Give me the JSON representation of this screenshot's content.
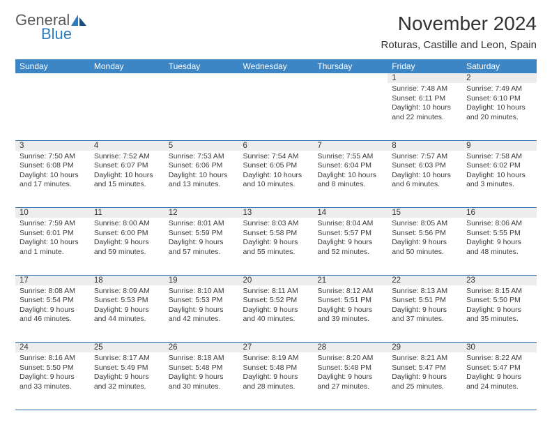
{
  "logo": {
    "general": "General",
    "blue": "Blue"
  },
  "title": "November 2024",
  "location": "Roturas, Castille and Leon, Spain",
  "colors": {
    "header_bg": "#3d86c6",
    "header_text": "#ffffff",
    "rule": "#2f6ca8",
    "daynum_bg": "#ededed",
    "text": "#3a3a3a",
    "brand_blue": "#2b7bbf"
  },
  "weekdays": [
    "Sunday",
    "Monday",
    "Tuesday",
    "Wednesday",
    "Thursday",
    "Friday",
    "Saturday"
  ],
  "weeks": [
    [
      null,
      null,
      null,
      null,
      null,
      {
        "n": "1",
        "sr": "Sunrise: 7:48 AM",
        "ss": "Sunset: 6:11 PM",
        "d1": "Daylight: 10 hours",
        "d2": "and 22 minutes."
      },
      {
        "n": "2",
        "sr": "Sunrise: 7:49 AM",
        "ss": "Sunset: 6:10 PM",
        "d1": "Daylight: 10 hours",
        "d2": "and 20 minutes."
      }
    ],
    [
      {
        "n": "3",
        "sr": "Sunrise: 7:50 AM",
        "ss": "Sunset: 6:08 PM",
        "d1": "Daylight: 10 hours",
        "d2": "and 17 minutes."
      },
      {
        "n": "4",
        "sr": "Sunrise: 7:52 AM",
        "ss": "Sunset: 6:07 PM",
        "d1": "Daylight: 10 hours",
        "d2": "and 15 minutes."
      },
      {
        "n": "5",
        "sr": "Sunrise: 7:53 AM",
        "ss": "Sunset: 6:06 PM",
        "d1": "Daylight: 10 hours",
        "d2": "and 13 minutes."
      },
      {
        "n": "6",
        "sr": "Sunrise: 7:54 AM",
        "ss": "Sunset: 6:05 PM",
        "d1": "Daylight: 10 hours",
        "d2": "and 10 minutes."
      },
      {
        "n": "7",
        "sr": "Sunrise: 7:55 AM",
        "ss": "Sunset: 6:04 PM",
        "d1": "Daylight: 10 hours",
        "d2": "and 8 minutes."
      },
      {
        "n": "8",
        "sr": "Sunrise: 7:57 AM",
        "ss": "Sunset: 6:03 PM",
        "d1": "Daylight: 10 hours",
        "d2": "and 6 minutes."
      },
      {
        "n": "9",
        "sr": "Sunrise: 7:58 AM",
        "ss": "Sunset: 6:02 PM",
        "d1": "Daylight: 10 hours",
        "d2": "and 3 minutes."
      }
    ],
    [
      {
        "n": "10",
        "sr": "Sunrise: 7:59 AM",
        "ss": "Sunset: 6:01 PM",
        "d1": "Daylight: 10 hours",
        "d2": "and 1 minute."
      },
      {
        "n": "11",
        "sr": "Sunrise: 8:00 AM",
        "ss": "Sunset: 6:00 PM",
        "d1": "Daylight: 9 hours",
        "d2": "and 59 minutes."
      },
      {
        "n": "12",
        "sr": "Sunrise: 8:01 AM",
        "ss": "Sunset: 5:59 PM",
        "d1": "Daylight: 9 hours",
        "d2": "and 57 minutes."
      },
      {
        "n": "13",
        "sr": "Sunrise: 8:03 AM",
        "ss": "Sunset: 5:58 PM",
        "d1": "Daylight: 9 hours",
        "d2": "and 55 minutes."
      },
      {
        "n": "14",
        "sr": "Sunrise: 8:04 AM",
        "ss": "Sunset: 5:57 PM",
        "d1": "Daylight: 9 hours",
        "d2": "and 52 minutes."
      },
      {
        "n": "15",
        "sr": "Sunrise: 8:05 AM",
        "ss": "Sunset: 5:56 PM",
        "d1": "Daylight: 9 hours",
        "d2": "and 50 minutes."
      },
      {
        "n": "16",
        "sr": "Sunrise: 8:06 AM",
        "ss": "Sunset: 5:55 PM",
        "d1": "Daylight: 9 hours",
        "d2": "and 48 minutes."
      }
    ],
    [
      {
        "n": "17",
        "sr": "Sunrise: 8:08 AM",
        "ss": "Sunset: 5:54 PM",
        "d1": "Daylight: 9 hours",
        "d2": "and 46 minutes."
      },
      {
        "n": "18",
        "sr": "Sunrise: 8:09 AM",
        "ss": "Sunset: 5:53 PM",
        "d1": "Daylight: 9 hours",
        "d2": "and 44 minutes."
      },
      {
        "n": "19",
        "sr": "Sunrise: 8:10 AM",
        "ss": "Sunset: 5:53 PM",
        "d1": "Daylight: 9 hours",
        "d2": "and 42 minutes."
      },
      {
        "n": "20",
        "sr": "Sunrise: 8:11 AM",
        "ss": "Sunset: 5:52 PM",
        "d1": "Daylight: 9 hours",
        "d2": "and 40 minutes."
      },
      {
        "n": "21",
        "sr": "Sunrise: 8:12 AM",
        "ss": "Sunset: 5:51 PM",
        "d1": "Daylight: 9 hours",
        "d2": "and 39 minutes."
      },
      {
        "n": "22",
        "sr": "Sunrise: 8:13 AM",
        "ss": "Sunset: 5:51 PM",
        "d1": "Daylight: 9 hours",
        "d2": "and 37 minutes."
      },
      {
        "n": "23",
        "sr": "Sunrise: 8:15 AM",
        "ss": "Sunset: 5:50 PM",
        "d1": "Daylight: 9 hours",
        "d2": "and 35 minutes."
      }
    ],
    [
      {
        "n": "24",
        "sr": "Sunrise: 8:16 AM",
        "ss": "Sunset: 5:50 PM",
        "d1": "Daylight: 9 hours",
        "d2": "and 33 minutes."
      },
      {
        "n": "25",
        "sr": "Sunrise: 8:17 AM",
        "ss": "Sunset: 5:49 PM",
        "d1": "Daylight: 9 hours",
        "d2": "and 32 minutes."
      },
      {
        "n": "26",
        "sr": "Sunrise: 8:18 AM",
        "ss": "Sunset: 5:48 PM",
        "d1": "Daylight: 9 hours",
        "d2": "and 30 minutes."
      },
      {
        "n": "27",
        "sr": "Sunrise: 8:19 AM",
        "ss": "Sunset: 5:48 PM",
        "d1": "Daylight: 9 hours",
        "d2": "and 28 minutes."
      },
      {
        "n": "28",
        "sr": "Sunrise: 8:20 AM",
        "ss": "Sunset: 5:48 PM",
        "d1": "Daylight: 9 hours",
        "d2": "and 27 minutes."
      },
      {
        "n": "29",
        "sr": "Sunrise: 8:21 AM",
        "ss": "Sunset: 5:47 PM",
        "d1": "Daylight: 9 hours",
        "d2": "and 25 minutes."
      },
      {
        "n": "30",
        "sr": "Sunrise: 8:22 AM",
        "ss": "Sunset: 5:47 PM",
        "d1": "Daylight: 9 hours",
        "d2": "and 24 minutes."
      }
    ]
  ]
}
